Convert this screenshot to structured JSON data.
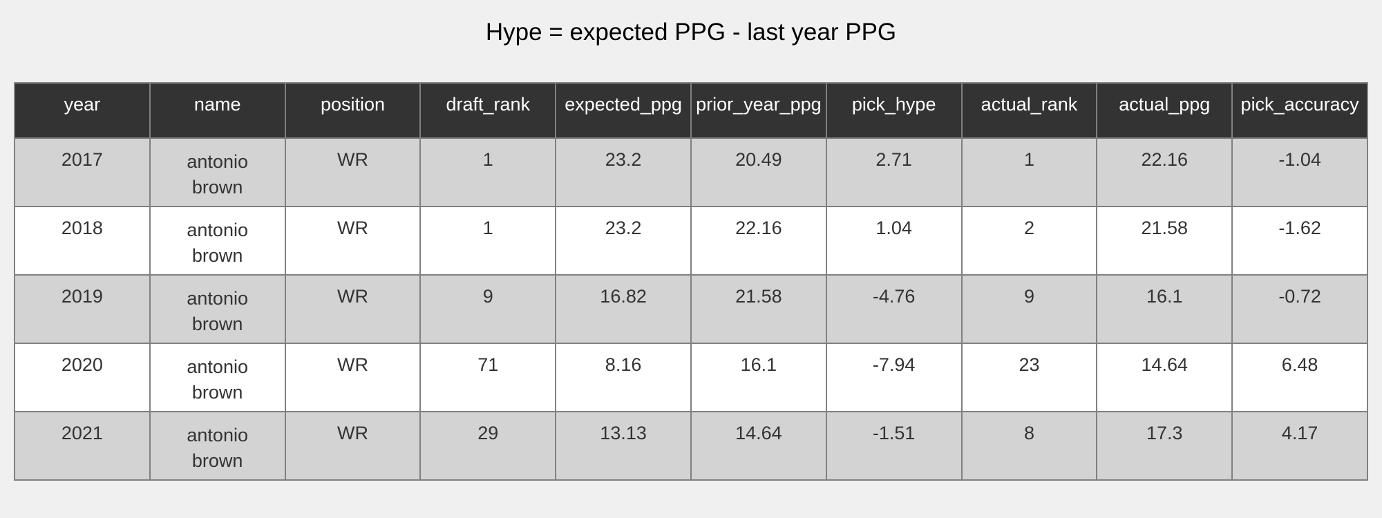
{
  "chart_data": {
    "type": "table",
    "title": "Hype = expected PPG - last year PPG",
    "columns": [
      "year",
      "name",
      "position",
      "draft_rank",
      "expected_ppg",
      "prior_year_ppg",
      "pick_hype",
      "actual_rank",
      "actual_ppg",
      "pick_accuracy"
    ],
    "rows": [
      [
        "2017",
        "antonio brown",
        "WR",
        "1",
        "23.2",
        "20.49",
        "2.71",
        "1",
        "22.16",
        "-1.04"
      ],
      [
        "2018",
        "antonio brown",
        "WR",
        "1",
        "23.2",
        "22.16",
        "1.04",
        "2",
        "21.58",
        "-1.62"
      ],
      [
        "2019",
        "antonio brown",
        "WR",
        "9",
        "16.82",
        "21.58",
        "-4.76",
        "9",
        "16.1",
        "-0.72"
      ],
      [
        "2020",
        "antonio brown",
        "WR",
        "71",
        "8.16",
        "16.1",
        "-7.94",
        "23",
        "14.64",
        "6.48"
      ],
      [
        "2021",
        "antonio brown",
        "WR",
        "29",
        "13.13",
        "14.64",
        "-1.51",
        "8",
        "17.3",
        "4.17"
      ]
    ]
  },
  "colors": {
    "background": "#f0f0f0",
    "header_bg": "#333333",
    "header_text": "#ffffff",
    "row_odd_bg": "#d3d3d3",
    "row_even_bg": "#ffffff",
    "border": "#808080"
  }
}
